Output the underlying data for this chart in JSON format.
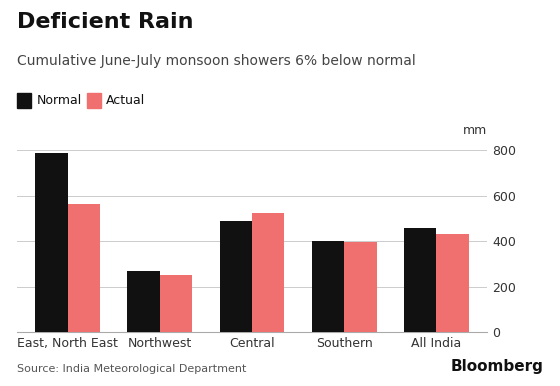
{
  "title": "Deficient Rain",
  "subtitle": "Cumulative June-July monsoon showers 6% below normal",
  "source": "Source: India Meteorological Department",
  "categories": [
    "East, North East",
    "Northwest",
    "Central",
    "Southern",
    "All India"
  ],
  "normal": [
    790,
    270,
    490,
    400,
    460
  ],
  "actual": [
    565,
    252,
    522,
    398,
    430
  ],
  "color_normal": "#111111",
  "color_actual": "#f07070",
  "ylim": [
    0,
    850
  ],
  "yticks": [
    0,
    200,
    400,
    600,
    800
  ],
  "ylabel": "mm",
  "legend_normal": "Normal",
  "legend_actual": "Actual",
  "bg_color": "#ffffff",
  "bloomberg_text": "Bloomberg",
  "title_fontsize": 16,
  "subtitle_fontsize": 10,
  "tick_fontsize": 9,
  "bar_width": 0.35
}
